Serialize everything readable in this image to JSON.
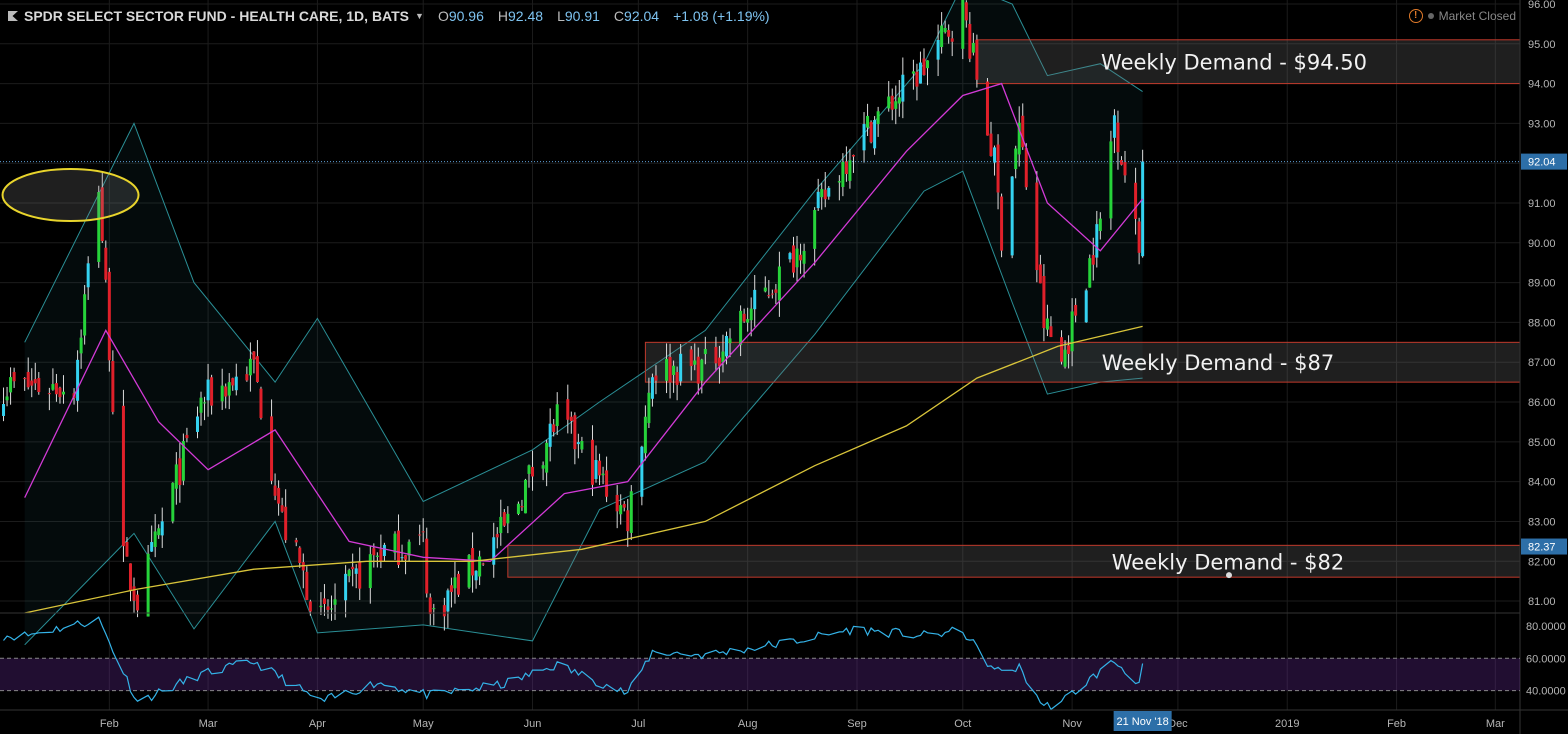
{
  "header": {
    "symbol_title": "SPDR SELECT SECTOR FUND - HEALTH CARE, 1D, BATS",
    "open_label": "O",
    "open": "90.96",
    "high_label": "H",
    "high": "92.48",
    "low_label": "L",
    "low": "90.91",
    "close_label": "C",
    "close": "92.04",
    "change": "+1.08 (+1.19%)"
  },
  "status": {
    "market": "Market Closed",
    "warning_icon": "exclamation-icon"
  },
  "colors": {
    "background": "#000000",
    "up_candle": "#26d33a",
    "up_hollow_candle": "#34d2f0",
    "down_candle": "#e0202a",
    "sma200": "#d8c43a",
    "sma20": "#d23ad6",
    "bollinger": "#2a8f96",
    "rsi": "#34b3e8",
    "zone_border": "#c0392b",
    "annotation_ellipse": "#e8d42c"
  },
  "chart_data": {
    "type": "candlestick",
    "price_axis": {
      "ylim": [
        80.7,
        96.1
      ],
      "ticks": [
        "81.00",
        "82.00",
        "83.00",
        "84.00",
        "85.00",
        "86.00",
        "87.00",
        "88.00",
        "89.00",
        "90.00",
        "91.00",
        "92.00",
        "93.00",
        "94.00",
        "95.00",
        "96.00"
      ]
    },
    "time_axis": {
      "ticks": [
        "Feb",
        "Mar",
        "Apr",
        "May",
        "Jun",
        "Jul",
        "Aug",
        "Sep",
        "Oct",
        "Nov",
        "Dec",
        "2019",
        "Feb",
        "Mar"
      ],
      "cursor_label": "21 Nov '18"
    },
    "last_price": "92.04",
    "crosshair_price": "82.37",
    "ohlc_anchors": [
      {
        "date": "2018-01-22",
        "close": 86.4
      },
      {
        "date": "2018-01-29",
        "close": 91.5
      },
      {
        "date": "2018-02-05",
        "close": 82.0
      },
      {
        "date": "2018-02-09",
        "close": 81.0
      },
      {
        "date": "2018-02-27",
        "close": 86.0
      },
      {
        "date": "2018-03-14",
        "close": 86.9
      },
      {
        "date": "2018-03-22",
        "close": 83.0
      },
      {
        "date": "2018-04-02",
        "close": 80.5
      },
      {
        "date": "2018-04-18",
        "close": 82.2
      },
      {
        "date": "2018-05-01",
        "close": 82.5
      },
      {
        "date": "2018-05-03",
        "close": 80.6
      },
      {
        "date": "2018-05-24",
        "close": 82.8
      },
      {
        "date": "2018-06-08",
        "close": 85.6
      },
      {
        "date": "2018-06-28",
        "close": 83.1
      },
      {
        "date": "2018-07-05",
        "close": 86.8
      },
      {
        "date": "2018-07-20",
        "close": 86.9
      },
      {
        "date": "2018-08-13",
        "close": 89.5
      },
      {
        "date": "2018-08-31",
        "close": 92.5
      },
      {
        "date": "2018-09-20",
        "close": 94.4
      },
      {
        "date": "2018-10-01",
        "close": 95.9
      },
      {
        "date": "2018-10-10",
        "close": 92.0
      },
      {
        "date": "2018-10-12",
        "close": 90.2
      },
      {
        "date": "2018-10-17",
        "close": 92.9
      },
      {
        "date": "2018-10-24",
        "close": 88.0
      },
      {
        "date": "2018-10-29",
        "close": 87.0
      },
      {
        "date": "2018-11-09",
        "close": 90.5
      },
      {
        "date": "2018-11-13",
        "close": 93.2
      },
      {
        "date": "2018-11-20",
        "close": 89.8
      },
      {
        "date": "2018-11-21",
        "close": 92.04
      }
    ],
    "sma200_anchors": [
      {
        "date": "2018-01-08",
        "value": 80.7
      },
      {
        "date": "2018-02-09",
        "value": 81.3
      },
      {
        "date": "2018-03-14",
        "value": 81.8
      },
      {
        "date": "2018-04-15",
        "value": 82.0
      },
      {
        "date": "2018-05-15",
        "value": 82.0
      },
      {
        "date": "2018-06-15",
        "value": 82.3
      },
      {
        "date": "2018-07-20",
        "value": 83.0
      },
      {
        "date": "2018-08-20",
        "value": 84.4
      },
      {
        "date": "2018-09-15",
        "value": 85.4
      },
      {
        "date": "2018-10-05",
        "value": 86.6
      },
      {
        "date": "2018-10-28",
        "value": 87.4
      },
      {
        "date": "2018-11-21",
        "value": 87.9
      }
    ],
    "sma20_anchors": [
      {
        "date": "2018-01-08",
        "value": 83.6
      },
      {
        "date": "2018-01-31",
        "value": 87.8
      },
      {
        "date": "2018-02-15",
        "value": 85.5
      },
      {
        "date": "2018-03-01",
        "value": 84.3
      },
      {
        "date": "2018-03-20",
        "value": 85.3
      },
      {
        "date": "2018-04-10",
        "value": 82.5
      },
      {
        "date": "2018-05-01",
        "value": 82.1
      },
      {
        "date": "2018-05-20",
        "value": 82.0
      },
      {
        "date": "2018-06-10",
        "value": 83.7
      },
      {
        "date": "2018-06-28",
        "value": 84.0
      },
      {
        "date": "2018-07-20",
        "value": 86.5
      },
      {
        "date": "2018-08-20",
        "value": 89.5
      },
      {
        "date": "2018-09-15",
        "value": 92.3
      },
      {
        "date": "2018-10-01",
        "value": 93.7
      },
      {
        "date": "2018-10-12",
        "value": 94.0
      },
      {
        "date": "2018-10-25",
        "value": 91.0
      },
      {
        "date": "2018-11-09",
        "value": 89.8
      },
      {
        "date": "2018-11-21",
        "value": 91.1
      }
    ],
    "bollinger_anchors": [
      {
        "date": "2018-01-08",
        "upper": 87.5,
        "lower": 79.9
      },
      {
        "date": "2018-02-08",
        "upper": 93.0,
        "lower": 82.7
      },
      {
        "date": "2018-02-25",
        "upper": 89.0,
        "lower": 80.3
      },
      {
        "date": "2018-03-20",
        "upper": 86.5,
        "lower": 83.0
      },
      {
        "date": "2018-04-01",
        "upper": 88.1,
        "lower": 80.2
      },
      {
        "date": "2018-05-01",
        "upper": 83.5,
        "lower": 80.4
      },
      {
        "date": "2018-06-01",
        "upper": 84.8,
        "lower": 80.0
      },
      {
        "date": "2018-06-20",
        "upper": 86.0,
        "lower": 83.3
      },
      {
        "date": "2018-07-20",
        "upper": 87.8,
        "lower": 84.5
      },
      {
        "date": "2018-08-20",
        "upper": 91.3,
        "lower": 87.7
      },
      {
        "date": "2018-09-20",
        "upper": 94.5,
        "lower": 91.3
      },
      {
        "date": "2018-10-01",
        "upper": 96.5,
        "lower": 91.8
      },
      {
        "date": "2018-10-15",
        "upper": 96.0,
        "lower": 88.5
      },
      {
        "date": "2018-10-25",
        "upper": 94.2,
        "lower": 86.2
      },
      {
        "date": "2018-11-09",
        "upper": 94.5,
        "lower": 86.5
      },
      {
        "date": "2018-11-21",
        "upper": 93.8,
        "lower": 86.6
      }
    ],
    "demand_zones": [
      {
        "label": "Weekly Demand - $94.50",
        "from_date": "2018-10-05",
        "top": 95.1,
        "bottom": 94.0
      },
      {
        "label": "Weekly Demand - $87",
        "from_date": "2018-07-03",
        "top": 87.5,
        "bottom": 86.5
      },
      {
        "label": "Weekly Demand - $82",
        "from_date": "2018-05-25",
        "top": 82.4,
        "bottom": 81.6
      }
    ],
    "rsi": {
      "ticks": [
        "40.0000",
        "60.0000",
        "80.0000"
      ],
      "ylim": [
        28,
        88
      ],
      "bands": [
        40,
        60
      ],
      "anchors": [
        {
          "date": "2018-01-08",
          "value": 74
        },
        {
          "date": "2018-01-29",
          "value": 84
        },
        {
          "date": "2018-02-09",
          "value": 33
        },
        {
          "date": "2018-02-27",
          "value": 50
        },
        {
          "date": "2018-03-14",
          "value": 58
        },
        {
          "date": "2018-04-02",
          "value": 33
        },
        {
          "date": "2018-04-18",
          "value": 45
        },
        {
          "date": "2018-05-03",
          "value": 37
        },
        {
          "date": "2018-05-24",
          "value": 44
        },
        {
          "date": "2018-06-08",
          "value": 56
        },
        {
          "date": "2018-06-28",
          "value": 38
        },
        {
          "date": "2018-07-05",
          "value": 64
        },
        {
          "date": "2018-07-20",
          "value": 62
        },
        {
          "date": "2018-08-13",
          "value": 70
        },
        {
          "date": "2018-08-31",
          "value": 78
        },
        {
          "date": "2018-09-20",
          "value": 74
        },
        {
          "date": "2018-10-01",
          "value": 77
        },
        {
          "date": "2018-10-10",
          "value": 52
        },
        {
          "date": "2018-10-17",
          "value": 54
        },
        {
          "date": "2018-10-24",
          "value": 30
        },
        {
          "date": "2018-10-29",
          "value": 33
        },
        {
          "date": "2018-11-09",
          "value": 52
        },
        {
          "date": "2018-11-13",
          "value": 58
        },
        {
          "date": "2018-11-20",
          "value": 45
        },
        {
          "date": "2018-11-21",
          "value": 55
        }
      ]
    }
  }
}
